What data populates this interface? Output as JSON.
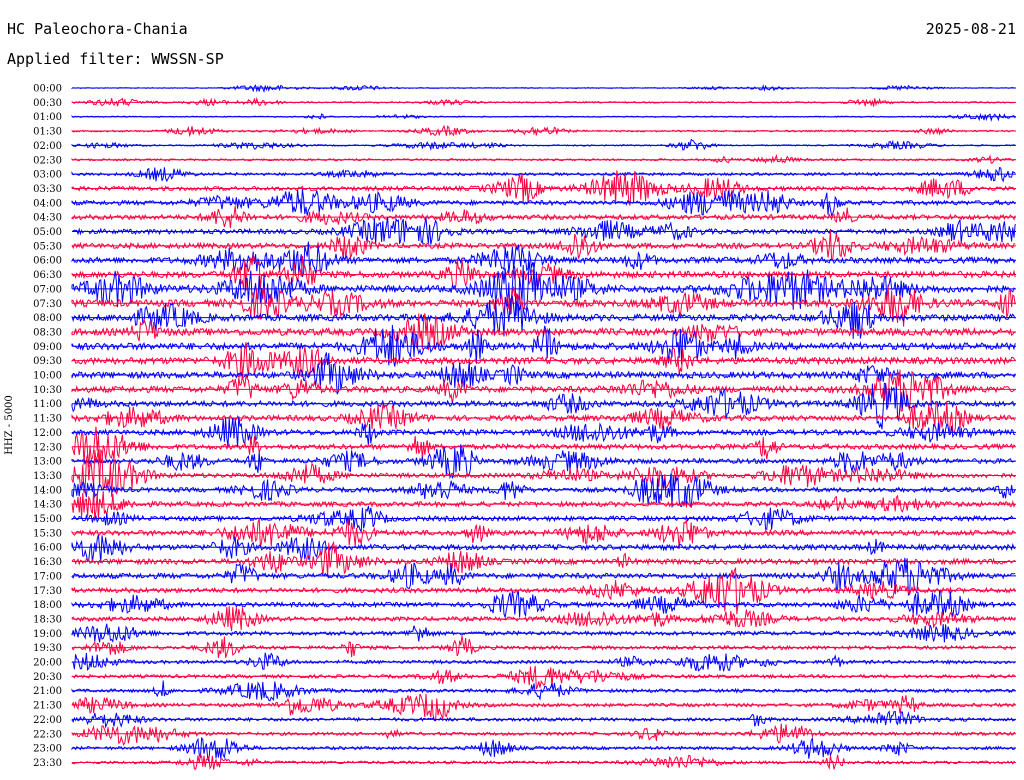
{
  "header": {
    "station": "HC Paleochora-Chania",
    "date": "2025-08-21",
    "filter": "Applied filter: WWSSN-SP"
  },
  "chart_data": {
    "type": "line",
    "title": "",
    "ylabel": "HHZ - 5000",
    "xlabel": "",
    "legend": "none",
    "grid": false,
    "colors": {
      "even": "#0000ff",
      "odd": "#ff0040"
    },
    "rows": [
      "00:00",
      "00:30",
      "01:00",
      "01:30",
      "02:00",
      "02:30",
      "03:00",
      "03:30",
      "04:00",
      "04:30",
      "05:00",
      "05:30",
      "06:00",
      "06:30",
      "07:00",
      "07:30",
      "08:00",
      "08:30",
      "09:00",
      "09:30",
      "10:00",
      "10:30",
      "11:00",
      "11:30",
      "12:00",
      "12:30",
      "13:00",
      "13:30",
      "14:00",
      "14:30",
      "15:00",
      "15:30",
      "16:00",
      "16:30",
      "17:00",
      "17:30",
      "18:00",
      "18:30",
      "19:00",
      "19:30",
      "20:00",
      "20:30",
      "21:00",
      "21:30",
      "22:00",
      "22:30",
      "23:00",
      "23:30"
    ],
    "noise_level": [
      0.6,
      1.0,
      0.8,
      1.2,
      1.0,
      1.4,
      2.0,
      3.0,
      3.2,
      3.4,
      3.4,
      3.8,
      4.2,
      4.6,
      5.0,
      5.0,
      4.8,
      5.0,
      5.0,
      4.8,
      4.6,
      4.4,
      4.0,
      3.8,
      3.8,
      3.6,
      3.4,
      3.2,
      3.2,
      3.4,
      3.4,
      3.6,
      3.8,
      3.8,
      3.8,
      3.4,
      3.2,
      3.0,
      2.8,
      2.6,
      2.4,
      2.4,
      2.4,
      2.4,
      2.4,
      2.2,
      2.2,
      2.0
    ]
  }
}
